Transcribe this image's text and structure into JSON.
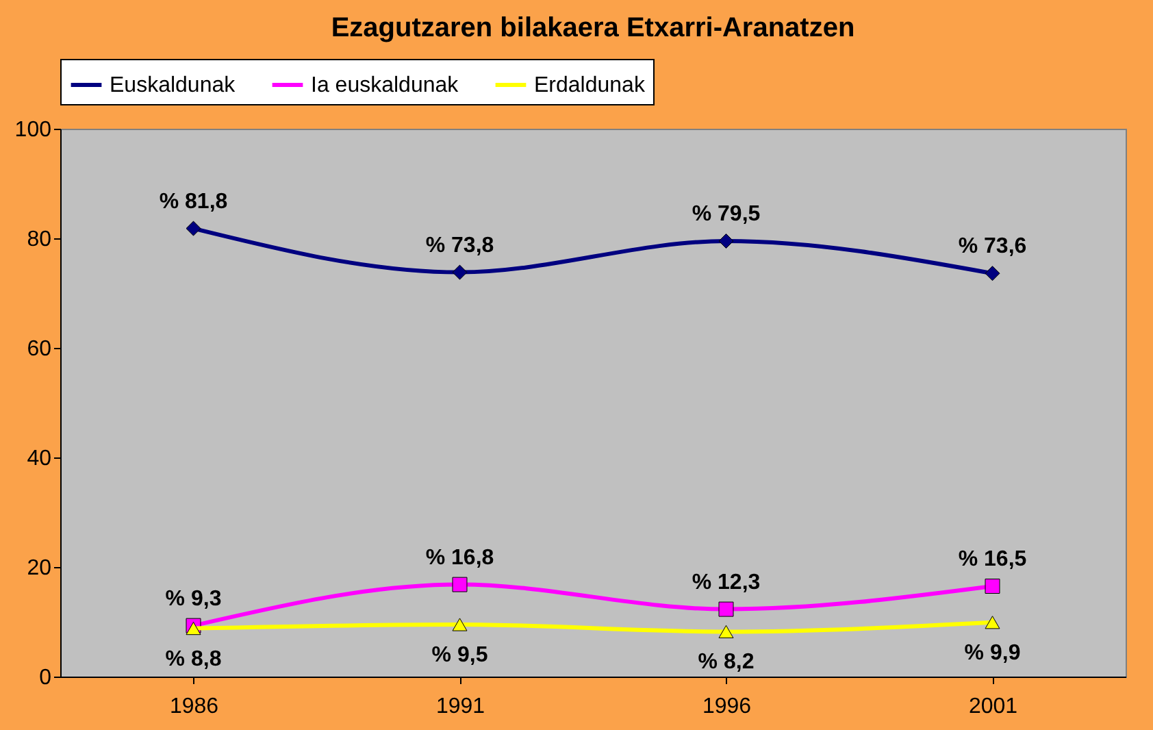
{
  "chart_data": {
    "type": "line",
    "title": "Ezagutzaren bilakaera Etxarri-Aranatzen",
    "categories": [
      "1986",
      "1991",
      "1996",
      "2001"
    ],
    "series": [
      {
        "name": "Euskaldunak",
        "color": "#000080",
        "marker": "diamond",
        "values": [
          81.8,
          73.8,
          79.5,
          73.6
        ],
        "value_labels": [
          "% 81,8",
          "% 73,8",
          "% 79,5",
          "% 73,6"
        ]
      },
      {
        "name": "Ia euskaldunak",
        "color": "#ff00ff",
        "marker": "square",
        "values": [
          9.3,
          16.8,
          12.3,
          16.5
        ],
        "value_labels": [
          "% 9,3",
          "% 16,8",
          "% 12,3",
          "% 16,5"
        ]
      },
      {
        "name": "Erdaldunak",
        "color": "#ffff00",
        "marker": "triangle",
        "values": [
          8.8,
          9.5,
          8.2,
          9.9
        ],
        "value_labels": [
          "% 8,8",
          "% 9,5",
          "% 8,2",
          "% 9,9"
        ]
      }
    ],
    "ylim": [
      0,
      100
    ],
    "yticks": [
      0,
      20,
      40,
      60,
      80,
      100
    ],
    "grid": false,
    "legend": "top",
    "line_style": "solid"
  }
}
